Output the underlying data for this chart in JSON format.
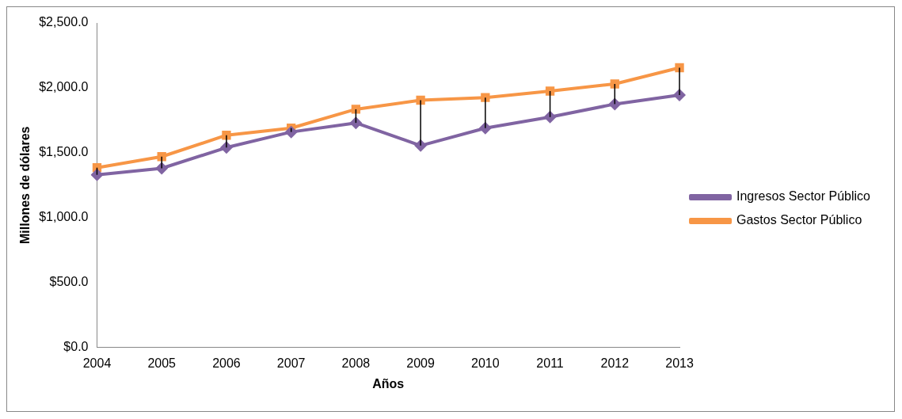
{
  "chart_data": {
    "type": "line",
    "xlabel": "Años",
    "ylabel": "Millones de dólares",
    "categories": [
      "2004",
      "2005",
      "2006",
      "2007",
      "2008",
      "2009",
      "2010",
      "2011",
      "2012",
      "2013"
    ],
    "series": [
      {
        "name": "Ingresos Sector Público",
        "color": "#8064a2",
        "marker": "diamond",
        "values": [
          1330,
          1380,
          1540,
          1660,
          1730,
          1555,
          1690,
          1775,
          1875,
          1945
        ],
        "errors": [
          [
            1330,
            1385
          ],
          [
            1380,
            1470
          ],
          [
            1540,
            1635
          ],
          [
            1660,
            1690
          ],
          [
            1730,
            1835
          ],
          [
            1555,
            1905
          ],
          [
            1690,
            1925
          ],
          [
            1775,
            1975
          ],
          [
            1875,
            2030
          ],
          [
            1945,
            2155
          ]
        ]
      },
      {
        "name": "Gastos Sector Público",
        "color": "#f79646",
        "marker": "square",
        "values": [
          1385,
          1470,
          1635,
          1690,
          1835,
          1905,
          1925,
          1975,
          2030,
          2155
        ]
      }
    ],
    "ylim": [
      0,
      2500
    ],
    "yticks": [
      {
        "value": 0,
        "label": "$0.0"
      },
      {
        "value": 500,
        "label": "$500.0"
      },
      {
        "value": 1000,
        "label": "$1,000.0"
      },
      {
        "value": 1500,
        "label": "$1,500.0"
      },
      {
        "value": 2000,
        "label": "$2,000.0"
      },
      {
        "value": 2500,
        "label": "$2,500.0"
      }
    ],
    "grid": false,
    "legend": "right"
  }
}
